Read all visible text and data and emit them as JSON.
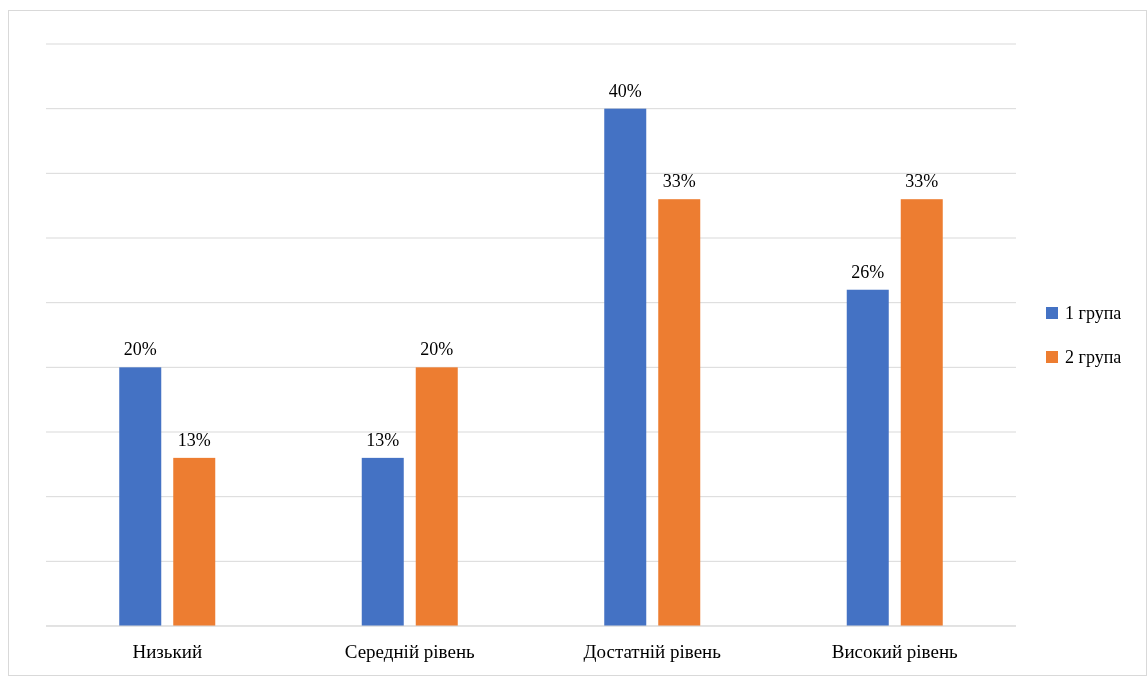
{
  "chart_data": {
    "type": "bar",
    "categories": [
      "Низький",
      "Середній рівень",
      "Достатній рівень",
      "Високий рівень"
    ],
    "series": [
      {
        "name": "1 група",
        "color": "#4472c4",
        "values": [
          20,
          13,
          40,
          26
        ],
        "value_labels": [
          "20%",
          "13%",
          "40%",
          "26%"
        ]
      },
      {
        "name": "2 група",
        "color": "#ed7d31",
        "values": [
          13,
          20,
          33,
          33
        ],
        "value_labels": [
          "13%",
          "20%",
          "33%",
          "33%"
        ]
      }
    ],
    "ylim": [
      0,
      45
    ],
    "yticks": [
      {
        "value": 0,
        "label": null
      },
      {
        "value": 5,
        "label": null
      },
      {
        "value": 10,
        "label": null
      },
      {
        "value": 15,
        "label": null
      },
      {
        "value": 20,
        "label": null
      },
      {
        "value": 25,
        "label": null
      },
      {
        "value": 30,
        "label": null
      },
      {
        "value": 35,
        "label": null
      },
      {
        "value": 40,
        "label": null
      },
      {
        "value": 45,
        "label": null
      }
    ],
    "grid": "y",
    "legend": "right",
    "tick_labels": "x"
  }
}
